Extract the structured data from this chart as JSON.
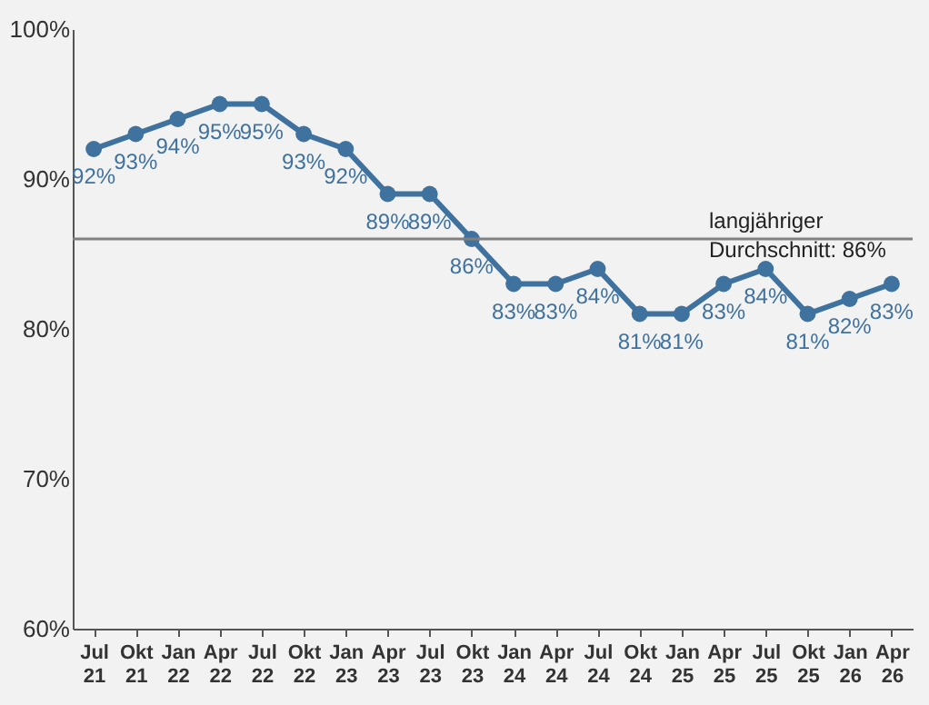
{
  "chart_data": {
    "type": "line",
    "categories": [
      "Jul 21",
      "Okt 21",
      "Jan 22",
      "Apr 22",
      "Jul 22",
      "Okt 22",
      "Jan 23",
      "Apr 23",
      "Jul 23",
      "Okt 23",
      "Jan 24",
      "Apr 24",
      "Jul 24",
      "Okt 24",
      "Jan 25",
      "Apr 25",
      "Jul 25",
      "Okt 25",
      "Jan 26",
      "Apr 26"
    ],
    "series": [
      {
        "color": "#3f729e",
        "values": [
          92,
          93,
          94,
          95,
          95,
          93,
          92,
          89,
          89,
          86,
          83,
          83,
          84,
          81,
          81,
          83,
          84,
          81,
          82,
          83
        ],
        "value_labels": [
          "92%",
          "93%",
          "94%",
          "95%",
          "95%",
          "93%",
          "92%",
          "89%",
          "89%",
          "86%",
          "83%",
          "83%",
          "84%",
          "81%",
          "81%",
          "83%",
          "84%",
          "81%",
          "82%",
          "83%"
        ]
      }
    ],
    "ylim": [
      60,
      100
    ],
    "yticks": [
      {
        "value": 60,
        "label": "60%"
      },
      {
        "value": 70,
        "label": "70%"
      },
      {
        "value": 80,
        "label": "80%"
      },
      {
        "value": 90,
        "label": "90%"
      },
      {
        "value": 100,
        "label": "100%"
      }
    ],
    "ref_lines": [
      {
        "axis": "y",
        "value": 86,
        "label": "langjähriger Durchschnitt: 86%",
        "color": "#808080"
      }
    ],
    "marker": "circle",
    "grid": false
  }
}
